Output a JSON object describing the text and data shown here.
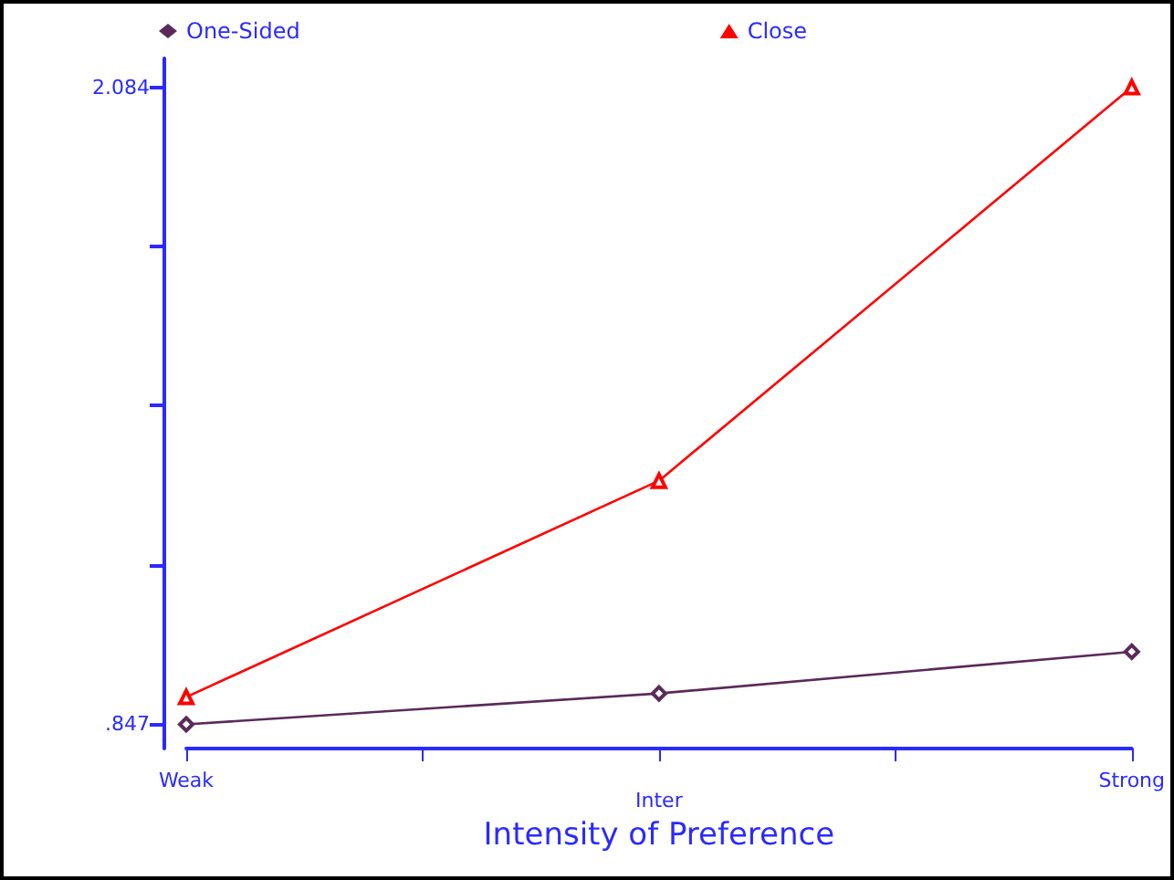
{
  "chart_data": {
    "type": "line",
    "xlabel": "Intensity of Preference",
    "categories": [
      "Weak",
      null,
      "Inter",
      null,
      "Strong"
    ],
    "series": [
      {
        "name": "One-Sided",
        "color": "#5a2a5a",
        "marker": "diamond",
        "values": [
          0.847,
          null,
          0.907,
          null,
          0.988
        ]
      },
      {
        "name": "Close",
        "color": "#ff0000",
        "marker": "triangle",
        "values": [
          0.9,
          null,
          1.32,
          null,
          2.084
        ]
      }
    ],
    "ylim": [
      0.8,
      2.14
    ],
    "yticks": [
      {
        "value": 0.847,
        "label": ".847"
      },
      {
        "value": 1.156,
        "label": null
      },
      {
        "value": 1.466,
        "label": null
      },
      {
        "value": 1.775,
        "label": null
      },
      {
        "value": 2.084,
        "label": "2.084"
      }
    ],
    "legend": "top",
    "grid": false
  }
}
